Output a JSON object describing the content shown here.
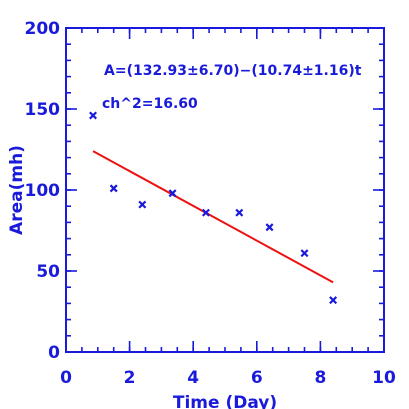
{
  "chart_data": {
    "type": "scatter",
    "xlabel": "Time (Day)",
    "ylabel": "Area(mh)",
    "xlim": [
      0,
      10
    ],
    "ylim": [
      0,
      200
    ],
    "x_ticks": [
      0,
      2,
      4,
      6,
      8,
      10
    ],
    "y_ticks": [
      0,
      50,
      100,
      150,
      200
    ],
    "x_minor_step": 0.5,
    "y_minor_step": 10,
    "points": {
      "x": [
        0.85,
        1.5,
        2.4,
        3.35,
        4.4,
        5.45,
        6.4,
        7.5,
        8.4
      ],
      "y": [
        146,
        101,
        91,
        98,
        86,
        86,
        77,
        61,
        32
      ]
    },
    "fit_line": {
      "x": [
        0.85,
        8.4
      ],
      "y": [
        124,
        43
      ],
      "color": "#ee1111"
    },
    "annotations": [
      "A=(132.93±6.70)−(10.74±1.16)t",
      "ch^2=16.60"
    ],
    "axis_color": "#1a1adb",
    "marker_color": "#1a1adb",
    "grid": false
  }
}
